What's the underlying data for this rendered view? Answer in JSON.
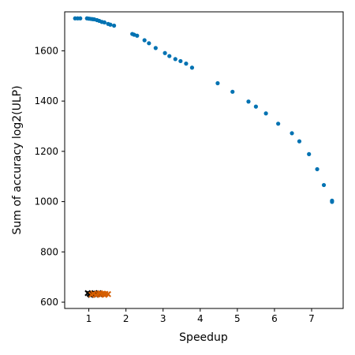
{
  "chart_data": {
    "type": "scatter",
    "title": "",
    "xlabel": "Speedup",
    "ylabel": "Sum of accuracy log2(ULP)",
    "xlim": [
      0.35,
      7.85
    ],
    "ylim": [
      575,
      1755
    ],
    "xticks": [
      1,
      2,
      3,
      4,
      5,
      6,
      7
    ],
    "yticks": [
      600,
      800,
      1000,
      1200,
      1400,
      1600
    ],
    "grid": false,
    "legend": "none",
    "series": [
      {
        "color": "#0072b2",
        "marker": "circle",
        "points": [
          [
            0.63,
            1729
          ],
          [
            0.7,
            1729
          ],
          [
            0.77,
            1729
          ],
          [
            0.95,
            1729
          ],
          [
            1.0,
            1728
          ],
          [
            1.05,
            1727
          ],
          [
            1.1,
            1726
          ],
          [
            1.15,
            1725
          ],
          [
            1.22,
            1722
          ],
          [
            1.28,
            1719
          ],
          [
            1.35,
            1715
          ],
          [
            1.42,
            1713
          ],
          [
            1.52,
            1707
          ],
          [
            1.58,
            1704
          ],
          [
            1.68,
            1700
          ],
          [
            2.17,
            1667
          ],
          [
            2.22,
            1664
          ],
          [
            2.3,
            1660
          ],
          [
            2.5,
            1642
          ],
          [
            2.62,
            1630
          ],
          [
            2.8,
            1611
          ],
          [
            3.05,
            1591
          ],
          [
            3.17,
            1579
          ],
          [
            3.33,
            1567
          ],
          [
            3.47,
            1559
          ],
          [
            3.62,
            1549
          ],
          [
            3.78,
            1533
          ],
          [
            4.47,
            1471
          ],
          [
            4.87,
            1437
          ],
          [
            5.3,
            1398
          ],
          [
            5.5,
            1378
          ],
          [
            5.77,
            1351
          ],
          [
            6.1,
            1310
          ],
          [
            6.47,
            1272
          ],
          [
            6.67,
            1240
          ],
          [
            6.93,
            1189
          ],
          [
            7.15,
            1129
          ],
          [
            7.33,
            1066
          ],
          [
            7.55,
            1004
          ],
          [
            7.55,
            999
          ]
        ]
      },
      {
        "color": "#000000",
        "marker": "cross",
        "points": [
          [
            0.97,
            636
          ],
          [
            1.02,
            633
          ],
          [
            1.05,
            629
          ],
          [
            1.09,
            634
          ],
          [
            1.12,
            631
          ],
          [
            1.15,
            636
          ],
          [
            1.18,
            630
          ],
          [
            1.22,
            633
          ],
          [
            1.26,
            636
          ],
          [
            1.3,
            631
          ]
        ]
      },
      {
        "color": "#d55e00",
        "marker": "cross",
        "points": [
          [
            1.07,
            630
          ],
          [
            1.12,
            634
          ],
          [
            1.2,
            629
          ],
          [
            1.25,
            633
          ],
          [
            1.3,
            636
          ],
          [
            1.35,
            631
          ],
          [
            1.38,
            634
          ],
          [
            1.42,
            629
          ],
          [
            1.45,
            633
          ],
          [
            1.52,
            632
          ]
        ]
      }
    ]
  }
}
